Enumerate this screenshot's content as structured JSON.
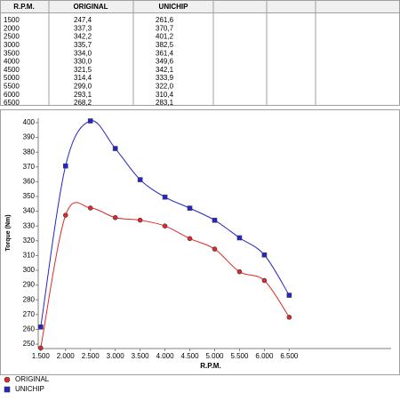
{
  "table": {
    "headers": [
      "R.P.M.",
      "ORIGINAL",
      "UNICHIP"
    ]
  },
  "chart_data": {
    "type": "line",
    "x_label": "R.P.M.",
    "y_label": "Torque (Nm)",
    "x": [
      1500,
      2000,
      2500,
      3000,
      3500,
      4000,
      4500,
      5000,
      5500,
      6000,
      6500
    ],
    "series": [
      {
        "name": "ORIGINAL",
        "color": "#e02828",
        "marker": "circle",
        "values": [
          247.4,
          337.3,
          342.2,
          335.7,
          334.0,
          330.0,
          321.5,
          314.4,
          299.0,
          293.1,
          268.2
        ],
        "value_labels": [
          "247,4",
          "337,3",
          "342,2",
          "335,7",
          "334,0",
          "330,0",
          "321,5",
          "314,4",
          "299,0",
          "293,1",
          "268,2"
        ]
      },
      {
        "name": "UNICHIP",
        "color": "#2424c8",
        "marker": "square",
        "values": [
          261.6,
          370.7,
          401.2,
          382.5,
          361.4,
          349.6,
          342.1,
          333.9,
          322.0,
          310.4,
          283.1
        ],
        "value_labels": [
          "261,6",
          "370,7",
          "401,2",
          "382,5",
          "361,4",
          "349,6",
          "342,1",
          "333,9",
          "322,0",
          "310,4",
          "283,1"
        ]
      }
    ],
    "xlim": [
      1450,
      8550
    ],
    "ylim": [
      247,
      403
    ],
    "xticks": [
      {
        "value": 1500,
        "label": "1.500"
      },
      {
        "value": 2000,
        "label": "2.000"
      },
      {
        "value": 2500,
        "label": "2.500"
      },
      {
        "value": 3000,
        "label": "3.000"
      },
      {
        "value": 3500,
        "label": "3.500"
      },
      {
        "value": 4000,
        "label": "4.000"
      },
      {
        "value": 4500,
        "label": "4.500"
      },
      {
        "value": 5000,
        "label": "5.000"
      },
      {
        "value": 5500,
        "label": "5.500"
      },
      {
        "value": 6000,
        "label": "6.000"
      },
      {
        "value": 6500,
        "label": "6.500"
      }
    ],
    "yticks": [
      250,
      260,
      270,
      280,
      290,
      300,
      310,
      320,
      330,
      340,
      350,
      360,
      370,
      380,
      390,
      400
    ],
    "grid": false,
    "smooth": true,
    "legend": "bottom-left"
  }
}
